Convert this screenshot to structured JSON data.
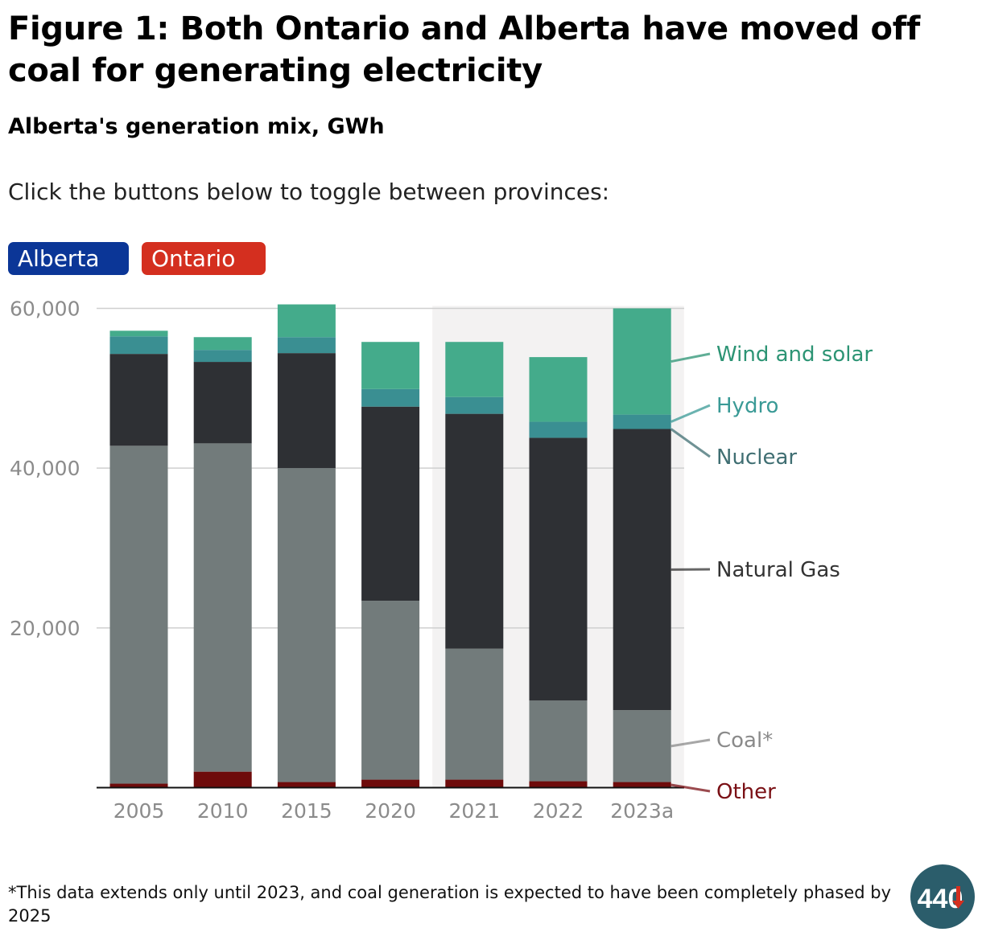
{
  "header": {
    "title": "Figure 1: Both Ontario and Alberta have moved off coal for generating electricity",
    "subtitle": "Alberta's generation mix, GWh",
    "instruction": "Click the buttons below to toggle between provinces:"
  },
  "toggles": {
    "alberta_label": "Alberta",
    "ontario_label": "Ontario",
    "alberta_color": "#0b3697",
    "ontario_color": "#d42f1f"
  },
  "chart_data": {
    "type": "bar",
    "stacked": true,
    "categories": [
      "2005",
      "2010",
      "2015",
      "2020",
      "2021",
      "2022",
      "2023a"
    ],
    "ylim": [
      0,
      60000
    ],
    "yticks": [
      20000,
      40000,
      60000
    ],
    "ytick_labels": [
      "20,000",
      "40,000",
      "60,000"
    ],
    "grid": true,
    "highlighted_categories": [
      "2021",
      "2022",
      "2023a"
    ],
    "series": [
      {
        "name": "Other",
        "color": "#6e0b0b",
        "label_color": "#7a1015",
        "values": [
          500,
          2000,
          700,
          1000,
          1000,
          800,
          700
        ]
      },
      {
        "name": "Coal*",
        "color": "#727b7b",
        "label_color": "#8a8a8a",
        "values": [
          42300,
          41100,
          39300,
          22400,
          16400,
          10100,
          9000
        ]
      },
      {
        "name": "Natural Gas",
        "color": "#2e3034",
        "label_color": "#333333",
        "values": [
          11500,
          10200,
          14400,
          24300,
          29400,
          32900,
          35200
        ]
      },
      {
        "name": "Nuclear",
        "color": "#3a8f92",
        "label_color": "#3f6e72",
        "values": [
          0,
          0,
          0,
          0,
          0,
          0,
          0
        ]
      },
      {
        "name": "Hydro",
        "color": "#3a8f92",
        "label_color": "#3a9a96",
        "values": [
          2200,
          1500,
          2000,
          2200,
          2100,
          2000,
          1800
        ]
      },
      {
        "name": "Wind and solar",
        "color": "#44ab8b",
        "label_color": "#2c9474",
        "values": [
          700,
          1600,
          4100,
          5900,
          6900,
          8100,
          13300
        ]
      }
    ]
  },
  "footnote": "*This data extends only until 2023, and coal generation is expected to have been completely phased by 2025",
  "logo": {
    "text": "440",
    "icon": "down-arrow-icon",
    "color": "#2b5d6b",
    "arrow_color": "#d42f1f"
  }
}
